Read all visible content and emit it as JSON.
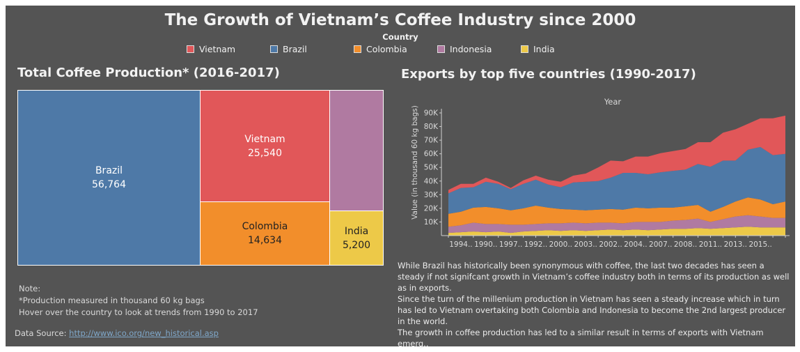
{
  "title": "The Growth of Vietnam’s Coffee Industry since 2000",
  "legend": {
    "title": "Country",
    "items": [
      {
        "label": "Vietnam",
        "color": "#e15759"
      },
      {
        "label": "Brazil",
        "color": "#4e79a7"
      },
      {
        "label": "Colombia",
        "color": "#f28e2b"
      },
      {
        "label": "Indonesia",
        "color": "#b07aa1"
      },
      {
        "label": "India",
        "color": "#edc948"
      }
    ]
  },
  "treemap": {
    "title": "Total Coffee Production* (2016-2017)",
    "tiles": [
      {
        "name": "Brazil",
        "value": "56,764"
      },
      {
        "name": "Vietnam",
        "value": "25,540"
      },
      {
        "name": "Colombia",
        "value": "14,634"
      },
      {
        "name": "India",
        "value": "5,200"
      }
    ]
  },
  "note": {
    "heading": "Note:",
    "line1": "*Production measured in thousand 60 kg bags",
    "line2": "Hover over the country to look at trends from 1990 to 2017"
  },
  "source": {
    "label": "Data Source:",
    "link": "http://www.ico.org/new_historical.asp"
  },
  "description": {
    "p1": "While Brazil has historically been synonymous with coffee, the last two decades has seen a steady if not signifcant growth in Vietnam’s coffee industry both in terms of its production as well as in exports.",
    "p2": "Since the turn of the millenium production in Vietnam has seen a steady increase which in turn has led to Vietnam overtaking both Colombia and Indonesia to become the 2nd largest producer in the world.",
    "p3": "The growth in coffee production has led to a similar result in terms of exports with Vietnam emerg.."
  },
  "chart_data": {
    "type": "area",
    "title": "Exports by top five countries (1990-2017)",
    "xlabel": "Year",
    "ylabel": "Value (in thousand 60 kg bags)",
    "ylim": [
      0,
      90000
    ],
    "y_ticks": [
      "10K",
      "20K",
      "30K",
      "40K",
      "50K",
      "60K",
      "70K",
      "80K",
      "90K"
    ],
    "x_tick_labels": [
      "1994..",
      "1990..",
      "1997..",
      "1992..",
      "2000..",
      "2003..",
      "2002..",
      "2004..",
      "2007..",
      "2008..",
      "2011..",
      "2013..",
      "2015.."
    ],
    "stacked": true,
    "x": [
      1,
      2,
      3,
      4,
      5,
      6,
      7,
      8,
      9,
      10,
      11,
      12,
      13,
      14,
      15,
      16,
      17,
      18,
      19,
      20,
      21,
      22,
      23,
      24,
      25,
      26,
      27,
      28
    ],
    "series": [
      {
        "name": "India",
        "color": "#edc948",
        "values": [
          2000,
          2500,
          3000,
          2500,
          3000,
          2000,
          3000,
          3500,
          4000,
          3500,
          4000,
          3500,
          4000,
          4500,
          4000,
          4500,
          4000,
          4500,
          5000,
          5000,
          5500,
          5000,
          5500,
          6000,
          6500,
          6000,
          6000,
          6000
        ]
      },
      {
        "name": "Indonesia",
        "color": "#b07aa1",
        "values": [
          4500,
          5000,
          6500,
          6000,
          5500,
          6000,
          5000,
          5000,
          5000,
          5500,
          5500,
          5500,
          5500,
          5000,
          5000,
          5500,
          6000,
          5500,
          6000,
          6500,
          7000,
          5000,
          6500,
          8000,
          8500,
          8000,
          7000,
          7000
        ]
      },
      {
        "name": "Colombia",
        "color": "#f28e2b",
        "values": [
          9500,
          10000,
          11000,
          12500,
          11500,
          10500,
          12000,
          13500,
          11500,
          10500,
          9500,
          9500,
          9500,
          10000,
          10000,
          10500,
          10000,
          10500,
          9500,
          10000,
          10000,
          7500,
          9000,
          11000,
          13000,
          12500,
          10000,
          12000
        ]
      },
      {
        "name": "Brazil",
        "color": "#4e79a7",
        "values": [
          15000,
          17500,
          15000,
          18500,
          18000,
          15500,
          18000,
          19000,
          17000,
          16000,
          20000,
          21000,
          21000,
          23000,
          27000,
          25500,
          25000,
          26000,
          27000,
          27000,
          30000,
          33000,
          34000,
          30000,
          35000,
          38500,
          36000,
          35000
        ]
      },
      {
        "name": "Vietnam",
        "color": "#e15759",
        "values": [
          2500,
          3000,
          2500,
          3000,
          1500,
          1000,
          2500,
          3000,
          3500,
          4000,
          5000,
          6000,
          10000,
          12500,
          8500,
          12000,
          13000,
          14000,
          14500,
          15000,
          16000,
          18000,
          20500,
          23000,
          19000,
          21000,
          27000,
          28000
        ]
      }
    ]
  }
}
